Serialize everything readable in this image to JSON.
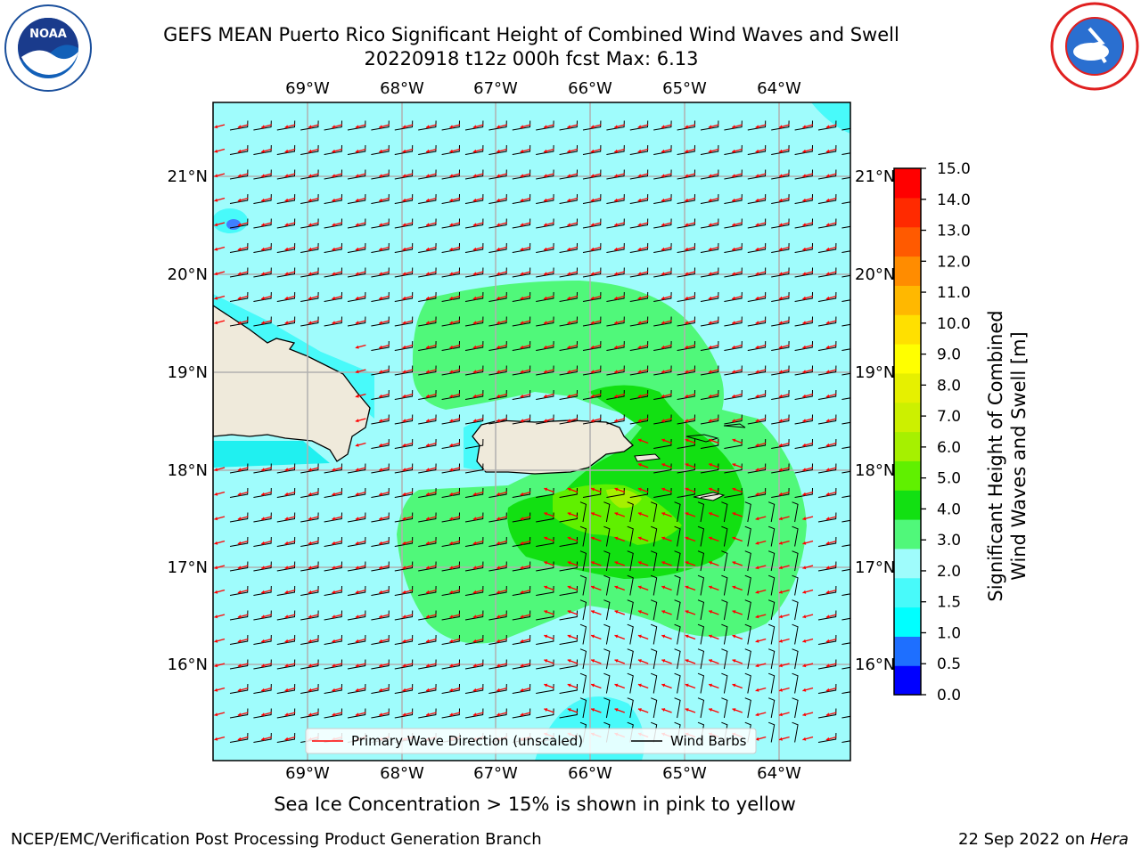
{
  "header": {
    "title_line1": "GEFS MEAN Puerto Rico Significant Height of Combined Wind Waves and Swell",
    "title_line2": "20220918 t12z 000h fcst   Max: 6.13"
  },
  "logos": {
    "left": {
      "name": "NOAA",
      "ring_text": "NATIONAL OCEANIC AND ATMOSPHERIC ADMINISTRATION · U.S. DEPARTMENT OF COMMERCE"
    },
    "right": {
      "name": "NATIONAL WEATHER SERVICE"
    }
  },
  "map": {
    "lon_labels": [
      "69°W",
      "68°W",
      "67°W",
      "66°W",
      "65°W",
      "64°W"
    ],
    "lat_labels": [
      "21°N",
      "20°N",
      "19°N",
      "18°N",
      "17°N",
      "16°N"
    ],
    "legend": {
      "wave_label": "Primary Wave Direction (unscaled)",
      "wind_label": "Wind Barbs"
    },
    "colors": {
      "ocean_low": "#9ffcfc",
      "land": "#efeadb",
      "wave_arrow": "#ff0000",
      "barb": "#000000"
    }
  },
  "colorbar": {
    "ticks": [
      "15.0",
      "14.0",
      "13.0",
      "12.0",
      "11.0",
      "10.0",
      "9.0",
      "8.0",
      "7.0",
      "6.0",
      "5.0",
      "4.0",
      "3.0",
      "2.0",
      "1.5",
      "1.0",
      "0.5",
      "0.0"
    ],
    "label_line1": "Significant Height of Combined",
    "label_line2": "Wind Waves and Swell [m]"
  },
  "notes": {
    "sea_ice": "Sea Ice Concentration > 15% is shown in pink to yellow",
    "footer_left": "NCEP/EMC/Verification Post Processing Product Generation Branch",
    "footer_right_prefix": "22 Sep 2022 on ",
    "footer_right_machine": "Hera"
  }
}
